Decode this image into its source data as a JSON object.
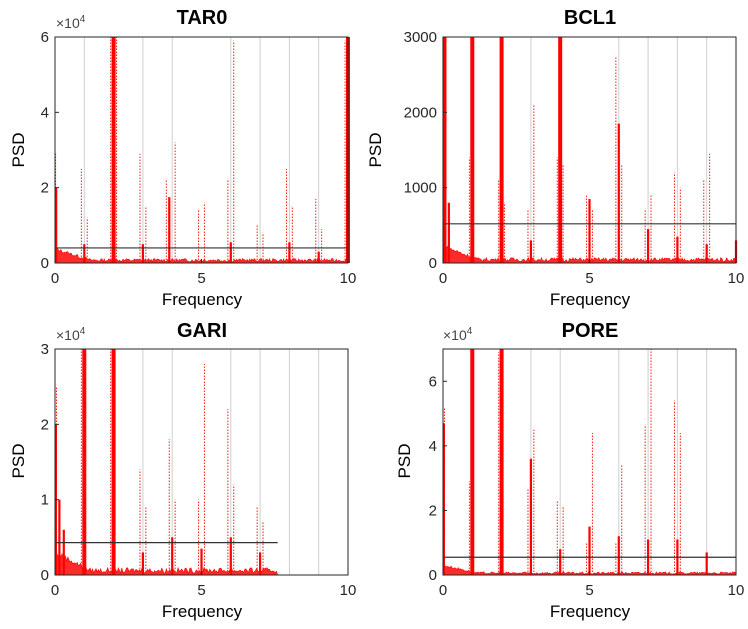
{
  "chart_data": [
    {
      "type": "line",
      "title": "TAR0",
      "xlabel": "Frequency",
      "ylabel": "PSD",
      "exponent_label": "×10",
      "exponent_power": "4",
      "xlim": [
        0,
        10
      ],
      "ylim": [
        0,
        6
      ],
      "xticks": [
        "0",
        "5",
        "10"
      ],
      "yticks": [
        "0",
        "2",
        "4",
        "6"
      ],
      "ytick_values": [
        0,
        2,
        4,
        6
      ],
      "threshold": 0.4,
      "threshold_xmax": 10,
      "noise_floor": 0.1,
      "solid_peaks": [
        [
          0.04,
          2.0
        ],
        [
          1.0,
          0.5
        ],
        [
          2.0,
          6.0
        ],
        [
          3.0,
          0.5
        ],
        [
          3.9,
          1.75
        ],
        [
          6.0,
          0.55
        ],
        [
          8.0,
          0.55
        ],
        [
          9.0,
          0.3
        ],
        [
          10.0,
          6.0
        ]
      ],
      "dotted_peaks": [
        [
          0.02,
          2.9
        ],
        [
          0.9,
          2.5
        ],
        [
          1.1,
          1.2
        ],
        [
          1.9,
          6.0
        ],
        [
          2.1,
          6.0
        ],
        [
          2.9,
          2.9
        ],
        [
          3.1,
          1.5
        ],
        [
          3.8,
          2.2
        ],
        [
          4.1,
          3.2
        ],
        [
          4.9,
          1.4
        ],
        [
          5.1,
          1.6
        ],
        [
          5.9,
          2.2
        ],
        [
          6.1,
          5.9
        ],
        [
          6.9,
          1.0
        ],
        [
          7.1,
          0.8
        ],
        [
          7.9,
          2.5
        ],
        [
          8.1,
          1.5
        ],
        [
          8.9,
          1.7
        ],
        [
          9.1,
          0.9
        ],
        [
          9.9,
          5.9
        ]
      ],
      "gridlines": [
        1,
        2,
        3,
        4,
        6,
        7,
        8,
        9
      ]
    },
    {
      "type": "line",
      "title": "BCL1",
      "xlabel": "Frequency",
      "ylabel": "PSD",
      "exponent_label": "",
      "exponent_power": "",
      "xlim": [
        0,
        10
      ],
      "ylim": [
        0,
        3000
      ],
      "xticks": [
        "0",
        "5",
        "10"
      ],
      "yticks": [
        "0",
        "1000",
        "2000",
        "3000"
      ],
      "ytick_values": [
        0,
        1000,
        2000,
        3000
      ],
      "threshold": 520,
      "threshold_xmax": 10,
      "noise_floor": 60,
      "solid_peaks": [
        [
          0.05,
          3000
        ],
        [
          0.2,
          800
        ],
        [
          1.0,
          3000
        ],
        [
          2.0,
          3000
        ],
        [
          3.0,
          300
        ],
        [
          4.0,
          3000
        ],
        [
          5.0,
          850
        ],
        [
          6.0,
          1850
        ],
        [
          7.0,
          450
        ],
        [
          8.0,
          350
        ],
        [
          9.0,
          250
        ],
        [
          10.0,
          300
        ]
      ],
      "dotted_peaks": [
        [
          0.1,
          3000
        ],
        [
          0.9,
          1400
        ],
        [
          1.9,
          1100
        ],
        [
          2.1,
          800
        ],
        [
          2.9,
          700
        ],
        [
          3.1,
          2100
        ],
        [
          3.9,
          1400
        ],
        [
          4.1,
          1300
        ],
        [
          4.9,
          900
        ],
        [
          5.1,
          700
        ],
        [
          5.9,
          2750
        ],
        [
          6.1,
          1300
        ],
        [
          6.9,
          700
        ],
        [
          7.1,
          900
        ],
        [
          7.9,
          1200
        ],
        [
          8.1,
          1000
        ],
        [
          8.9,
          1100
        ],
        [
          9.1,
          1450
        ]
      ],
      "gridlines": [
        1,
        2,
        3,
        4,
        6,
        7,
        8,
        9
      ]
    },
    {
      "type": "line",
      "title": "GARI",
      "xlabel": "Frequency",
      "ylabel": "PSD",
      "exponent_label": "×10",
      "exponent_power": "4",
      "xlim": [
        0,
        10
      ],
      "ylim": [
        0,
        3
      ],
      "xticks": [
        "0",
        "5",
        "10"
      ],
      "yticks": [
        "0",
        "1",
        "2",
        "3"
      ],
      "ytick_values": [
        0,
        1,
        2,
        3
      ],
      "threshold": 0.43,
      "threshold_xmax": 7.6,
      "noise_floor": 0.08,
      "data_xmax": 7.6,
      "solid_peaks": [
        [
          0.03,
          2.0
        ],
        [
          0.15,
          1.0
        ],
        [
          0.3,
          0.6
        ],
        [
          1.0,
          3.0
        ],
        [
          2.0,
          3.0
        ],
        [
          3.0,
          0.3
        ],
        [
          4.0,
          0.5
        ],
        [
          5.0,
          0.35
        ],
        [
          6.0,
          0.5
        ],
        [
          7.0,
          0.3
        ]
      ],
      "dotted_peaks": [
        [
          0.05,
          2.5
        ],
        [
          0.9,
          3.0
        ],
        [
          1.9,
          3.0
        ],
        [
          2.9,
          1.4
        ],
        [
          3.1,
          0.9
        ],
        [
          3.9,
          1.8
        ],
        [
          4.1,
          1.0
        ],
        [
          4.9,
          1.0
        ],
        [
          5.1,
          2.8
        ],
        [
          5.9,
          2.2
        ],
        [
          6.1,
          1.2
        ],
        [
          6.9,
          0.9
        ],
        [
          7.1,
          0.7
        ]
      ],
      "gridlines": [
        1,
        2,
        3,
        4,
        6,
        7,
        8,
        9
      ]
    },
    {
      "type": "line",
      "title": "PORE",
      "xlabel": "Frequency",
      "ylabel": "PSD",
      "exponent_label": "×10",
      "exponent_power": "4",
      "xlim": [
        0,
        10
      ],
      "ylim": [
        0,
        7
      ],
      "xticks": [
        "0",
        "5",
        "10"
      ],
      "yticks": [
        "0",
        "2",
        "4",
        "6"
      ],
      "ytick_values": [
        0,
        2,
        4,
        6
      ],
      "threshold": 0.55,
      "threshold_xmax": 10,
      "noise_floor": 0.08,
      "solid_peaks": [
        [
          0.03,
          4.7
        ],
        [
          1.0,
          7.0
        ],
        [
          2.0,
          7.0
        ],
        [
          3.0,
          3.6
        ],
        [
          4.0,
          0.8
        ],
        [
          5.0,
          1.5
        ],
        [
          6.0,
          1.2
        ],
        [
          7.0,
          1.1
        ],
        [
          8.0,
          1.1
        ],
        [
          9.0,
          0.7
        ]
      ],
      "dotted_peaks": [
        [
          0.05,
          5.2
        ],
        [
          0.9,
          2.9
        ],
        [
          1.9,
          6.9
        ],
        [
          2.9,
          2.7
        ],
        [
          3.1,
          4.5
        ],
        [
          3.9,
          2.3
        ],
        [
          4.1,
          2.1
        ],
        [
          4.9,
          1.0
        ],
        [
          5.1,
          4.4
        ],
        [
          5.9,
          1.0
        ],
        [
          6.1,
          3.4
        ],
        [
          6.9,
          4.6
        ],
        [
          7.1,
          7.0
        ],
        [
          7.9,
          5.4
        ],
        [
          8.1,
          4.4
        ]
      ],
      "gridlines": [
        1,
        2,
        3,
        4,
        6,
        7,
        8,
        9
      ]
    }
  ]
}
